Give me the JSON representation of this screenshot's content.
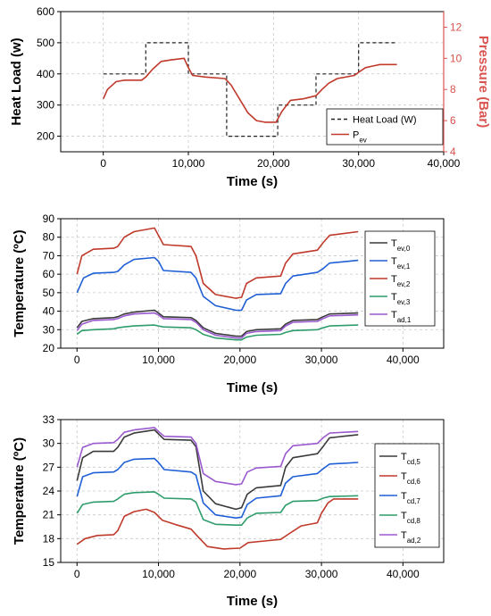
{
  "chart_data": [
    {
      "type": "line",
      "xlabel": "Time (s)",
      "ylabel": "Heat Load (w)",
      "y2label": "Pressure (Bar)",
      "xlim": [
        -5000,
        40000
      ],
      "ylim": [
        150,
        600
      ],
      "y2lim": [
        4,
        13
      ],
      "xticks": [
        0,
        10000,
        20000,
        30000,
        40000
      ],
      "xtick_labels": [
        "0",
        "10,000",
        "20,000",
        "30,000",
        "40,000"
      ],
      "yticks": [
        200,
        300,
        400,
        500,
        600
      ],
      "y2ticks": [
        4,
        6,
        8,
        10,
        12
      ],
      "grid": true,
      "legend_position": "right",
      "series": [
        {
          "name": "Heat Load (W)",
          "axis": "left",
          "color": "#222222",
          "dash": true,
          "step": true,
          "x": [
            0,
            5000,
            5000,
            10000,
            10000,
            14500,
            14500,
            20500,
            20500,
            25000,
            25000,
            30000,
            30000,
            34500
          ],
          "y": [
            400,
            400,
            500,
            500,
            400,
            400,
            200,
            200,
            300,
            300,
            400,
            400,
            500,
            500
          ]
        },
        {
          "name": "P",
          "sub": "ev",
          "axis": "right",
          "color": "#c0392b",
          "x": [
            0,
            500,
            1500,
            2500,
            4500,
            5000,
            5800,
            6800,
            8000,
            9500,
            10000,
            10500,
            12000,
            14300,
            15000,
            16000,
            17000,
            18000,
            19000,
            20300,
            21000,
            22000,
            23500,
            25000,
            25700,
            26500,
            27500,
            29500,
            30000,
            30800,
            31600,
            32500,
            34500
          ],
          "y": [
            7.4,
            8.0,
            8.5,
            8.6,
            8.6,
            8.8,
            9.3,
            9.8,
            9.9,
            10.0,
            9.4,
            8.9,
            8.8,
            8.7,
            8.3,
            7.4,
            6.5,
            6.0,
            5.9,
            5.9,
            6.6,
            7.3,
            7.4,
            7.6,
            8.0,
            8.4,
            8.7,
            8.9,
            9.1,
            9.4,
            9.5,
            9.6,
            9.6
          ]
        }
      ]
    },
    {
      "type": "line",
      "xlabel": "Time (s)",
      "ylabel": "Temperature (ºC)",
      "xlim": [
        -2000,
        45000
      ],
      "ylim": [
        20,
        90
      ],
      "xticks": [
        0,
        10000,
        20000,
        30000,
        40000
      ],
      "xtick_labels": [
        "0",
        "10,000",
        "20,000",
        "30,000",
        "40,000"
      ],
      "yticks": [
        20,
        30,
        40,
        50,
        60,
        70,
        80,
        90
      ],
      "grid": true,
      "legend_position": "right",
      "series": [
        {
          "name": "T",
          "sub": "ev,0",
          "color": "#3a3a3a",
          "x": [
            0,
            600,
            2000,
            4500,
            5000,
            5800,
            7000,
            9500,
            10000,
            10600,
            14000,
            14600,
            15500,
            17000,
            19500,
            20200,
            20800,
            22000,
            25000,
            25600,
            26500,
            29500,
            30200,
            31000,
            34500
          ],
          "y": [
            31,
            34.5,
            36,
            36.5,
            37,
            38.5,
            39.5,
            40.5,
            39,
            37,
            36.5,
            35,
            31,
            28,
            26.5,
            26.5,
            29,
            30,
            30.5,
            33,
            35,
            35.5,
            37,
            38.5,
            39
          ]
        },
        {
          "name": "T",
          "sub": "ev,1",
          "color": "#1f5fd6",
          "x": [
            0,
            800,
            2000,
            4500,
            5000,
            5800,
            7000,
            9500,
            10000,
            10600,
            14000,
            14600,
            15500,
            17000,
            19500,
            20200,
            20800,
            22000,
            25000,
            25600,
            26500,
            29500,
            30200,
            31000,
            34500
          ],
          "y": [
            50,
            58,
            60.5,
            61,
            61.5,
            65,
            68,
            69,
            67,
            62,
            61,
            58,
            48,
            43,
            40.5,
            40.5,
            46,
            49,
            49.5,
            55,
            59,
            61,
            63,
            66,
            67.5
          ]
        },
        {
          "name": "T",
          "sub": "ev,2",
          "color": "#c0392b",
          "x": [
            0,
            600,
            2000,
            4500,
            5000,
            5800,
            7000,
            9500,
            10000,
            10600,
            14000,
            14600,
            15500,
            17000,
            19500,
            20200,
            20800,
            22000,
            25000,
            25600,
            26500,
            29500,
            30200,
            31000,
            34500
          ],
          "y": [
            60,
            70,
            73.5,
            74,
            75,
            80,
            83,
            85,
            81,
            76,
            75,
            70,
            55,
            49,
            47,
            47.5,
            55,
            58,
            59,
            66,
            71,
            73,
            77,
            81,
            83
          ]
        },
        {
          "name": "T",
          "sub": "ev,3",
          "color": "#2e9c6a",
          "x": [
            0,
            600,
            2000,
            4500,
            5000,
            5800,
            7000,
            9500,
            10000,
            10600,
            14000,
            14600,
            15500,
            17000,
            19500,
            20200,
            20800,
            22000,
            25000,
            25600,
            26500,
            29500,
            30200,
            31000,
            34500
          ],
          "y": [
            27.5,
            29.5,
            30,
            30.5,
            31,
            31.5,
            32,
            32.5,
            32,
            31.5,
            31,
            30,
            27.5,
            25.5,
            24.5,
            24.5,
            26,
            27,
            27.5,
            28.5,
            29.5,
            30,
            31,
            32,
            32.5
          ]
        },
        {
          "name": "T",
          "sub": "ad,1",
          "color": "#9b59d0",
          "x": [
            0,
            600,
            2000,
            4500,
            5000,
            5800,
            7000,
            9500,
            10000,
            10600,
            14000,
            14600,
            15500,
            17000,
            19500,
            20200,
            20800,
            22000,
            25000,
            25600,
            26500,
            29500,
            30200,
            31000,
            34500
          ],
          "y": [
            29.5,
            33,
            35,
            35.5,
            36,
            37.5,
            38.5,
            39,
            38,
            36,
            35.5,
            34,
            30,
            27,
            25.5,
            25.5,
            28,
            29,
            29.5,
            32,
            34,
            34.5,
            36,
            37.5,
            38
          ]
        }
      ]
    },
    {
      "type": "line",
      "xlabel": "Time (s)",
      "ylabel": "Temperature (ºC)",
      "xlim": [
        -2000,
        45000
      ],
      "ylim": [
        15,
        33
      ],
      "xticks": [
        0,
        10000,
        20000,
        30000,
        40000
      ],
      "xtick_labels": [
        "0",
        "10,000",
        "20,000",
        "30,000",
        "40,000"
      ],
      "yticks": [
        15,
        18,
        21,
        24,
        27,
        30,
        33
      ],
      "grid": true,
      "legend_position": "right",
      "series": [
        {
          "name": "T",
          "sub": "cd,5",
          "color": "#3a3a3a",
          "x": [
            0,
            700,
            2000,
            4500,
            5000,
            5800,
            7000,
            9500,
            10000,
            10700,
            14000,
            14600,
            15500,
            17000,
            19500,
            20200,
            20900,
            22000,
            25000,
            25600,
            26500,
            29500,
            30200,
            31000,
            34500
          ],
          "y": [
            25.3,
            28.2,
            29,
            29,
            29.5,
            30.8,
            31.3,
            31.7,
            31.2,
            30.5,
            30.4,
            29.6,
            24,
            22.4,
            21.7,
            21.9,
            23.6,
            24.4,
            24.7,
            27,
            28.2,
            28.7,
            29.6,
            30.7,
            31.1
          ]
        },
        {
          "name": "T",
          "sub": "cd,6",
          "color": "#c0392b",
          "x": [
            0,
            1000,
            2500,
            4500,
            5000,
            5800,
            7000,
            8500,
            9500,
            10500,
            12000,
            14000,
            14800,
            16000,
            18000,
            20000,
            21000,
            23000,
            25000,
            26000,
            27500,
            29500,
            30000,
            30800,
            31500,
            34500
          ],
          "y": [
            17.3,
            18,
            18.4,
            18.5,
            19,
            20.8,
            21.4,
            21.7,
            21.3,
            20.3,
            19.8,
            19.2,
            18.3,
            17,
            16.7,
            16.8,
            17.5,
            17.7,
            17.9,
            18.6,
            19.6,
            20,
            21.2,
            22.5,
            23,
            23
          ]
        },
        {
          "name": "T",
          "sub": "cd,7",
          "color": "#1f5fd6",
          "x": [
            0,
            700,
            2000,
            4500,
            5000,
            5800,
            7000,
            9500,
            10000,
            10700,
            14000,
            14600,
            15500,
            17000,
            19500,
            20200,
            20900,
            22000,
            25000,
            25600,
            26500,
            29500,
            30200,
            31000,
            34500
          ],
          "y": [
            23.3,
            25.8,
            26.3,
            26.4,
            26.7,
            27.6,
            28,
            28.1,
            27.6,
            26.7,
            26.4,
            26,
            22.5,
            21,
            20.6,
            20.7,
            22.3,
            23.1,
            23.4,
            25,
            25.8,
            26.2,
            26.8,
            27.4,
            27.6
          ]
        },
        {
          "name": "T",
          "sub": "cd,8",
          "color": "#2e9c6a",
          "x": [
            0,
            700,
            2000,
            4500,
            5000,
            5800,
            7000,
            9500,
            10000,
            10700,
            14000,
            14600,
            15500,
            17000,
            19500,
            20200,
            20900,
            22000,
            25000,
            25600,
            26500,
            29500,
            30200,
            31000,
            34500
          ],
          "y": [
            21.2,
            22.3,
            22.6,
            22.7,
            23,
            23.6,
            23.8,
            23.9,
            23.6,
            23.1,
            23,
            22.6,
            20.4,
            19.8,
            19.7,
            19.7,
            20.6,
            21.2,
            21.3,
            22.2,
            22.7,
            22.8,
            23.1,
            23.3,
            23.4
          ]
        },
        {
          "name": "T",
          "sub": "ad,2",
          "color": "#9b59d0",
          "x": [
            0,
            700,
            2000,
            4500,
            5000,
            5800,
            7000,
            9500,
            10000,
            10700,
            14000,
            14600,
            15500,
            17000,
            19500,
            20200,
            20900,
            22000,
            25000,
            25600,
            26500,
            29500,
            30200,
            31000,
            34500
          ],
          "y": [
            27,
            29.5,
            30,
            30.1,
            30.5,
            31.4,
            31.7,
            32,
            31.5,
            30.9,
            30.8,
            30,
            26.2,
            25.2,
            24.8,
            24.9,
            26.4,
            26.9,
            27.1,
            28.7,
            29.7,
            30,
            30.7,
            31.3,
            31.5
          ]
        }
      ]
    }
  ]
}
